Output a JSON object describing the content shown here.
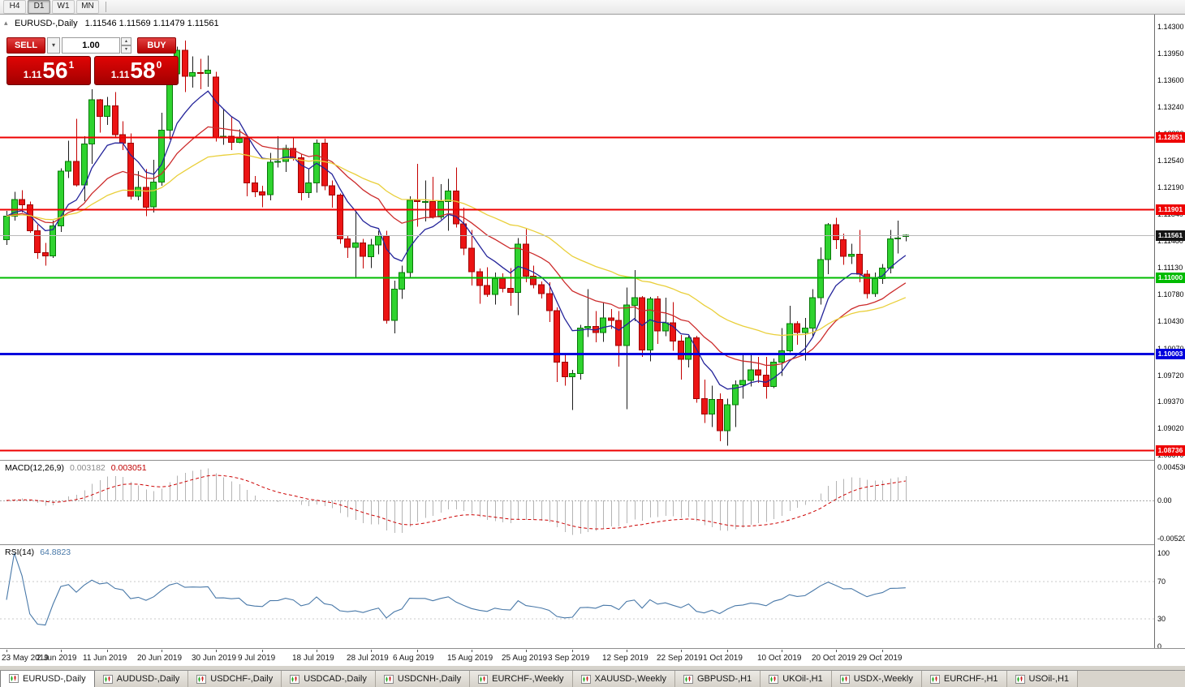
{
  "toolbar": {
    "timeframes": [
      {
        "label": "H4",
        "active": false
      },
      {
        "label": "D1",
        "active": true
      },
      {
        "label": "W1",
        "active": false
      },
      {
        "label": "MN",
        "active": false
      }
    ]
  },
  "icons": {
    "collapse": "▴",
    "dropdown": "▾",
    "spin_up": "▴",
    "spin_down": "▾"
  },
  "chart": {
    "symbol_title": "EURUSD-,Daily",
    "ohlc_text": "1.11546 1.11569 1.11479 1.11561",
    "current_price": "1.11561",
    "one_click": {
      "sell_label": "SELL",
      "buy_label": "BUY",
      "volume": "1.00",
      "sell_price": {
        "prefix": "1.11",
        "big": "56",
        "sup": "1"
      },
      "buy_price": {
        "prefix": "1.11",
        "big": "58",
        "sup": "0"
      }
    },
    "price_scale": [
      "1.14300",
      "1.13950",
      "1.13600",
      "1.13240",
      "1.12890",
      "1.12540",
      "1.12190",
      "1.11840",
      "1.11480",
      "1.11130",
      "1.10780",
      "1.10430",
      "1.10070",
      "1.09720",
      "1.09370",
      "1.09020",
      "1.08670"
    ],
    "hlines": [
      {
        "price": 1.12851,
        "label": "1.12851",
        "color": "#ee0000",
        "width": 2
      },
      {
        "price": 1.11901,
        "label": "1.11901",
        "color": "#ee0000",
        "width": 2
      },
      {
        "price": 1.11,
        "label": "1.11000",
        "color": "#00bb00",
        "width": 2
      },
      {
        "price": 1.10003,
        "label": "1.10003",
        "color": "#0000dd",
        "width": 3
      },
      {
        "price": 1.08736,
        "label": "1.08736",
        "color": "#ee0000",
        "width": 2
      }
    ],
    "x_axis": [
      {
        "label": "23 May 2019",
        "i": 0
      },
      {
        "label": "2 Jun 2019",
        "i": 7
      },
      {
        "label": "11 Jun 2019",
        "i": 13
      },
      {
        "label": "20 Jun 2019",
        "i": 20
      },
      {
        "label": "30 Jun 2019",
        "i": 27
      },
      {
        "label": "9 Jul 2019",
        "i": 33
      },
      {
        "label": "18 Jul 2019",
        "i": 40
      },
      {
        "label": "28 Jul 2019",
        "i": 47
      },
      {
        "label": "6 Aug 2019",
        "i": 53
      },
      {
        "label": "15 Aug 2019",
        "i": 60
      },
      {
        "label": "25 Aug 2019",
        "i": 67
      },
      {
        "label": "3 Sep 2019",
        "i": 73
      },
      {
        "label": "12 Sep 2019",
        "i": 80
      },
      {
        "label": "22 Sep 2019",
        "i": 87
      },
      {
        "label": "1 Oct 2019",
        "i": 93
      },
      {
        "label": "10 Oct 2019",
        "i": 100
      },
      {
        "label": "20 Oct 2019",
        "i": 107
      },
      {
        "label": "29 Oct 2019",
        "i": 113
      }
    ]
  },
  "macd": {
    "title": "MACD(12,26,9)",
    "value_main": "0.003182",
    "value_signal": "0.003051",
    "scale": [
      "0.004536",
      "0.00",
      "-0.005205"
    ]
  },
  "rsi": {
    "title": "RSI(14)",
    "value": "64.8823",
    "period": 14,
    "scale": [
      "100",
      "70",
      "30",
      "0"
    ]
  },
  "tabs": [
    {
      "label": "EURUSD-,Daily",
      "active": true
    },
    {
      "label": "AUDUSD-,Daily",
      "active": false
    },
    {
      "label": "USDCHF-,Daily",
      "active": false
    },
    {
      "label": "USDCAD-,Daily",
      "active": false
    },
    {
      "label": "USDCNH-,Daily",
      "active": false
    },
    {
      "label": "EURCHF-,Weekly",
      "active": false
    },
    {
      "label": "XAUUSD-,Weekly",
      "active": false
    },
    {
      "label": "GBPUSD-,H1",
      "active": false
    },
    {
      "label": "UKOil-,H1",
      "active": false
    },
    {
      "label": "USDX-,Weekly",
      "active": false
    },
    {
      "label": "EURCHF-,H1",
      "active": false
    },
    {
      "label": "USOil-,H1",
      "active": false
    }
  ],
  "chart_data": {
    "type": "candlestick",
    "symbol": "EURUSD",
    "timeframe": "Daily",
    "ylim": [
      1.0867,
      1.143
    ],
    "grid": false,
    "current_bid": 1.11561,
    "moving_averages": [
      {
        "name": "fast-ma",
        "type": "ema",
        "period": 8,
        "color": "#24249a"
      },
      {
        "name": "medium-ma",
        "type": "ema",
        "period": 20,
        "color": "#cc2b2b"
      },
      {
        "name": "slow-ma",
        "type": "ema",
        "period": 40,
        "color": "#e9cf3a"
      }
    ],
    "indicators": [
      {
        "type": "MACD",
        "params": [
          12,
          26,
          9
        ],
        "current_main": 0.003182,
        "current_signal": 0.003051,
        "scale_max": 0.004536,
        "scale_min": -0.005205
      },
      {
        "type": "RSI",
        "params": [
          14
        ],
        "current": 64.8823,
        "levels": [
          30,
          70
        ],
        "scale": [
          0,
          100
        ]
      }
    ],
    "candles": [
      [
        1.115,
        1.1188,
        1.1143,
        1.1181
      ],
      [
        1.1181,
        1.1213,
        1.1175,
        1.1203
      ],
      [
        1.1203,
        1.1215,
        1.1186,
        1.1196
      ],
      [
        1.1196,
        1.12,
        1.1159,
        1.1162
      ],
      [
        1.1162,
        1.117,
        1.1125,
        1.1133
      ],
      [
        1.1133,
        1.1146,
        1.1116,
        1.1129
      ],
      [
        1.1129,
        1.1175,
        1.1126,
        1.1168
      ],
      [
        1.1168,
        1.1244,
        1.116,
        1.124
      ],
      [
        1.124,
        1.128,
        1.1231,
        1.1253
      ],
      [
        1.1253,
        1.1309,
        1.122,
        1.1222
      ],
      [
        1.1222,
        1.1286,
        1.1201,
        1.1276
      ],
      [
        1.1276,
        1.1348,
        1.125,
        1.1334
      ],
      [
        1.1334,
        1.1335,
        1.1291,
        1.1312
      ],
      [
        1.1312,
        1.1338,
        1.1301,
        1.1326
      ],
      [
        1.1326,
        1.1344,
        1.1284,
        1.1288
      ],
      [
        1.1288,
        1.1306,
        1.1268,
        1.1277
      ],
      [
        1.1277,
        1.129,
        1.1203,
        1.1207
      ],
      [
        1.1207,
        1.124,
        1.1202,
        1.1219
      ],
      [
        1.1219,
        1.1243,
        1.1181,
        1.1193
      ],
      [
        1.1193,
        1.1255,
        1.1186,
        1.1226
      ],
      [
        1.1226,
        1.1317,
        1.1221,
        1.1294
      ],
      [
        1.1294,
        1.1378,
        1.1282,
        1.1368
      ],
      [
        1.1368,
        1.1404,
        1.1358,
        1.1399
      ],
      [
        1.1399,
        1.1412,
        1.1344,
        1.1365
      ],
      [
        1.1365,
        1.1391,
        1.135,
        1.137
      ],
      [
        1.137,
        1.1388,
        1.1348,
        1.1369
      ],
      [
        1.1369,
        1.1392,
        1.1351,
        1.1373
      ],
      [
        1.1364,
        1.1371,
        1.1279,
        1.1285
      ],
      [
        1.1285,
        1.1322,
        1.1275,
        1.1286
      ],
      [
        1.1286,
        1.1312,
        1.1268,
        1.1278
      ],
      [
        1.1278,
        1.1295,
        1.1277,
        1.1283
      ],
      [
        1.1283,
        1.1288,
        1.1207,
        1.1225
      ],
      [
        1.1225,
        1.1234,
        1.1206,
        1.1213
      ],
      [
        1.1213,
        1.1221,
        1.1193,
        1.1209
      ],
      [
        1.1209,
        1.1264,
        1.1202,
        1.1252
      ],
      [
        1.1252,
        1.1286,
        1.1245,
        1.1253
      ],
      [
        1.1253,
        1.1275,
        1.1239,
        1.127
      ],
      [
        1.127,
        1.1285,
        1.1254,
        1.1258
      ],
      [
        1.1258,
        1.1262,
        1.1202,
        1.1212
      ],
      [
        1.1212,
        1.1243,
        1.1205,
        1.1225
      ],
      [
        1.1225,
        1.1282,
        1.1212,
        1.1277
      ],
      [
        1.1277,
        1.1283,
        1.1215,
        1.1221
      ],
      [
        1.1221,
        1.1228,
        1.1192,
        1.1209
      ],
      [
        1.1209,
        1.1211,
        1.1145,
        1.1151
      ],
      [
        1.1151,
        1.1156,
        1.1126,
        1.114
      ],
      [
        1.114,
        1.1188,
        1.1101,
        1.1146
      ],
      [
        1.1146,
        1.1151,
        1.1112,
        1.1128
      ],
      [
        1.1128,
        1.1151,
        1.1113,
        1.1143
      ],
      [
        1.1143,
        1.1162,
        1.1131,
        1.1155
      ],
      [
        1.1155,
        1.1162,
        1.104,
        1.1044
      ],
      [
        1.1044,
        1.1096,
        1.1027,
        1.1085
      ],
      [
        1.1085,
        1.1116,
        1.1072,
        1.1107
      ],
      [
        1.1107,
        1.1207,
        1.1101,
        1.1202
      ],
      [
        1.1202,
        1.125,
        1.1167,
        1.12
      ],
      [
        1.12,
        1.1228,
        1.1174,
        1.12
      ],
      [
        1.12,
        1.1233,
        1.1178,
        1.118
      ],
      [
        1.118,
        1.1223,
        1.1177,
        1.12
      ],
      [
        1.12,
        1.123,
        1.1162,
        1.1214
      ],
      [
        1.1214,
        1.1245,
        1.1166,
        1.1171
      ],
      [
        1.1171,
        1.1192,
        1.113,
        1.1139
      ],
      [
        1.1139,
        1.1163,
        1.109,
        1.1108
      ],
      [
        1.1108,
        1.1112,
        1.1066,
        1.109
      ],
      [
        1.109,
        1.1114,
        1.1075,
        1.1078
      ],
      [
        1.1078,
        1.1107,
        1.1065,
        1.1099
      ],
      [
        1.1099,
        1.1106,
        1.1081,
        1.1086
      ],
      [
        1.1086,
        1.1113,
        1.1063,
        1.1081
      ],
      [
        1.1081,
        1.1152,
        1.1051,
        1.1144
      ],
      [
        1.1144,
        1.1164,
        1.1094,
        1.1102
      ],
      [
        1.1102,
        1.1116,
        1.1086,
        1.1091
      ],
      [
        1.1091,
        1.1095,
        1.1073,
        1.1079
      ],
      [
        1.1079,
        1.1094,
        1.1042,
        1.1057
      ],
      [
        1.1057,
        1.1061,
        1.0963,
        1.0989
      ],
      [
        1.0989,
        1.0998,
        1.0958,
        1.097
      ],
      [
        1.097,
        1.0979,
        1.0926,
        1.0974
      ],
      [
        1.0974,
        1.1038,
        1.0966,
        1.1034
      ],
      [
        1.1034,
        1.1085,
        1.1022,
        1.1036
      ],
      [
        1.1036,
        1.1056,
        1.1015,
        1.1028
      ],
      [
        1.1028,
        1.1067,
        1.1016,
        1.1047
      ],
      [
        1.1047,
        1.1059,
        1.1033,
        1.1044
      ],
      [
        1.1044,
        1.1056,
        1.0983,
        1.1011
      ],
      [
        1.1011,
        1.1087,
        1.0927,
        1.1064
      ],
      [
        1.1064,
        1.111,
        1.1043,
        1.1074
      ],
      [
        1.1074,
        1.1076,
        1.0996,
        1.1005
      ],
      [
        1.1005,
        1.1075,
        1.099,
        1.1072
      ],
      [
        1.1072,
        1.1076,
        1.1013,
        1.103
      ],
      [
        1.103,
        1.1074,
        1.1023,
        1.1041
      ],
      [
        1.1041,
        1.1068,
        1.1004,
        1.1017
      ],
      [
        1.1017,
        1.1025,
        1.0966,
        1.0993
      ],
      [
        1.0993,
        1.1024,
        1.0982,
        1.1021
      ],
      [
        1.1021,
        1.1024,
        1.0936,
        1.0941
      ],
      [
        1.0941,
        1.0966,
        1.0909,
        1.0921
      ],
      [
        1.0921,
        1.0958,
        1.0904,
        1.094
      ],
      [
        1.094,
        1.0948,
        1.0885,
        1.0899
      ],
      [
        1.0899,
        1.0941,
        1.0879,
        1.0933
      ],
      [
        1.0933,
        1.0965,
        1.0904,
        1.0959
      ],
      [
        1.0959,
        1.0999,
        1.0941,
        1.0965
      ],
      [
        1.0965,
        1.0999,
        1.0957,
        1.0979
      ],
      [
        1.0979,
        1.0996,
        1.0962,
        1.0972
      ],
      [
        1.0972,
        1.0996,
        1.0941,
        1.0957
      ],
      [
        1.0957,
        1.0994,
        1.0955,
        1.0989
      ],
      [
        1.0989,
        1.1034,
        1.0971,
        1.1004
      ],
      [
        1.1004,
        1.1063,
        1.1002,
        1.104
      ],
      [
        1.104,
        1.1043,
        1.1012,
        1.1028
      ],
      [
        1.1028,
        1.1047,
        1.0991,
        1.1034
      ],
      [
        1.1034,
        1.1085,
        1.1023,
        1.1074
      ],
      [
        1.1074,
        1.114,
        1.1065,
        1.1124
      ],
      [
        1.1124,
        1.1172,
        1.1105,
        1.117
      ],
      [
        1.117,
        1.1179,
        1.1138,
        1.115
      ],
      [
        1.115,
        1.1158,
        1.1117,
        1.1128
      ],
      [
        1.1128,
        1.1145,
        1.1118,
        1.1131
      ],
      [
        1.1131,
        1.1163,
        1.1094,
        1.1105
      ],
      [
        1.1105,
        1.111,
        1.1073,
        1.1079
      ],
      [
        1.1079,
        1.1107,
        1.1075,
        1.1099
      ],
      [
        1.1099,
        1.1118,
        1.1092,
        1.1113
      ],
      [
        1.1113,
        1.1163,
        1.1106,
        1.1151
      ],
      [
        1.1151,
        1.1175,
        1.1132,
        1.1152
      ],
      [
        1.11546,
        1.11569,
        1.11479,
        1.11561
      ]
    ]
  }
}
